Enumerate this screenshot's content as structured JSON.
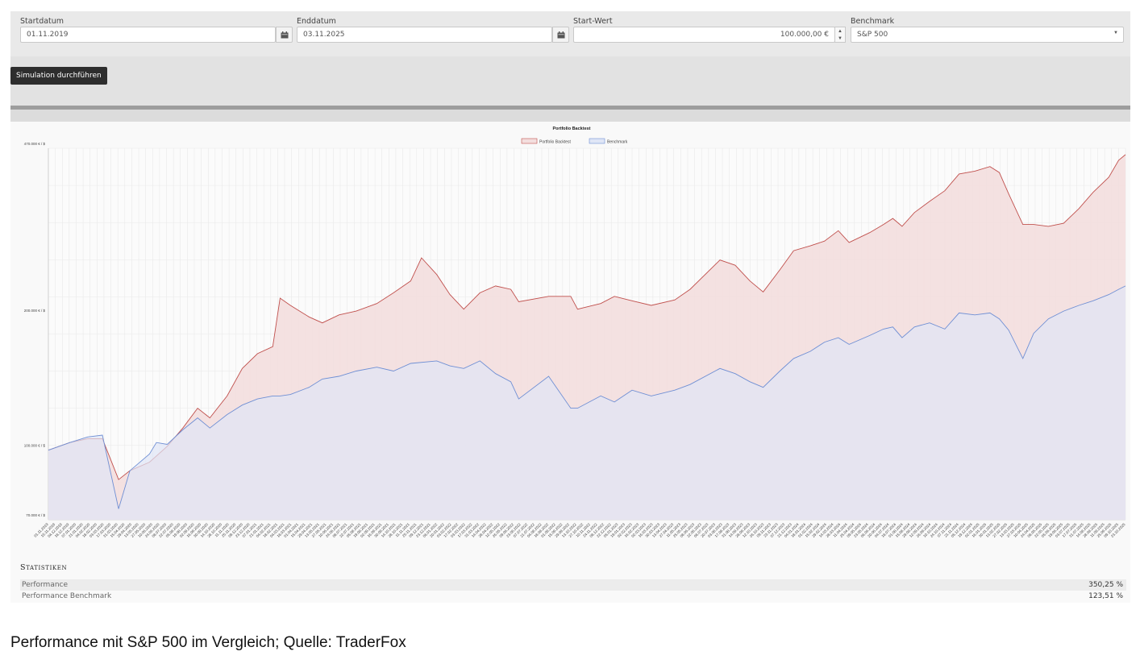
{
  "form": {
    "start_label": "Startdatum",
    "start_value": "01.11.2019",
    "end_label": "Enddatum",
    "end_value": "03.11.2025",
    "startwert_label": "Start-Wert",
    "startwert_value": "100.000,00 €",
    "benchmark_label": "Benchmark",
    "benchmark_value": "S&P 500"
  },
  "actions": {
    "run_label": "Simulation durchführen"
  },
  "chart_data": {
    "type": "area",
    "title": "Portfolio Backtest",
    "legend_position": "top-center",
    "y_scale": "log",
    "ylim": [
      70000,
      470000
    ],
    "y_ticks": [
      "470.000 € / $",
      "200.000 € / $",
      "100.000 € / $",
      "70.000 € / $"
    ],
    "y_tick_values": [
      470000,
      200000,
      100000,
      70000
    ],
    "grid": true,
    "x_start": "2019-11-01",
    "x_end": "2025-11-03",
    "x_ticks": [
      "01.11.2019",
      "15.11.2019",
      "04.12.2019",
      "18.12.2019",
      "07.01.2020",
      "21.01.2020",
      "04.02.2020",
      "18.02.2020",
      "03.03.2020",
      "17.03.2020",
      "31.03.2020",
      "15.04.2020",
      "29.04.2020",
      "13.05.2020",
      "27.05.2020",
      "10.06.2020",
      "24.06.2020",
      "08.07.2020",
      "22.07.2020",
      "05.08.2020",
      "19.08.2020",
      "02.09.2020",
      "16.09.2020",
      "30.09.2020",
      "14.10.2020",
      "28.10.2020",
      "11.11.2020",
      "25.11.2020",
      "09.12.2020",
      "23.12.2020",
      "07.01.2021",
      "21.01.2021",
      "04.02.2021",
      "18.02.2021",
      "04.03.2021",
      "18.03.2021",
      "01.04.2021",
      "15.04.2021",
      "29.04.2021",
      "13.05.2021",
      "27.05.2021",
      "10.06.2021",
      "24.06.2021",
      "08.07.2021",
      "22.07.2021",
      "05.08.2021",
      "19.08.2021",
      "02.09.2021",
      "16.09.2021",
      "30.09.2021",
      "14.10.2021",
      "28.10.2021",
      "11.11.2021",
      "25.11.2021",
      "09.12.2021",
      "23.12.2021",
      "06.01.2022",
      "20.01.2022",
      "03.02.2022",
      "17.02.2022",
      "03.03.2022",
      "17.03.2022",
      "31.03.2022",
      "14.04.2022",
      "28.04.2022",
      "12.05.2022",
      "26.05.2022",
      "09.06.2022",
      "23.06.2022",
      "07.07.2022",
      "21.07.2022",
      "04.08.2022",
      "18.08.2022",
      "01.09.2022",
      "15.09.2022",
      "29.09.2022",
      "13.10.2022",
      "27.10.2022",
      "10.11.2022",
      "24.11.2022",
      "08.12.2022",
      "22.12.2022",
      "05.01.2023",
      "19.01.2023",
      "02.02.2023",
      "16.02.2023",
      "02.03.2023",
      "16.03.2023",
      "30.03.2023",
      "13.04.2023",
      "27.04.2023",
      "11.05.2023",
      "25.05.2023",
      "08.06.2023",
      "22.06.2023",
      "06.07.2023",
      "20.07.2023",
      "03.08.2023",
      "17.08.2023",
      "31.08.2023",
      "14.09.2023",
      "28.09.2023",
      "12.10.2023",
      "26.10.2023",
      "09.11.2023",
      "23.11.2023",
      "07.12.2023",
      "21.12.2023",
      "04.01.2024",
      "18.01.2024",
      "01.02.2024",
      "15.02.2024",
      "29.02.2024",
      "14.03.2024",
      "28.03.2024",
      "11.04.2024",
      "25.04.2024",
      "09.05.2024",
      "23.05.2024",
      "06.06.2024",
      "20.06.2024",
      "04.07.2024",
      "18.07.2024",
      "01.08.2024",
      "15.08.2024",
      "29.08.2024",
      "12.09.2024",
      "26.09.2024",
      "10.10.2024",
      "24.10.2024",
      "07.11.2024",
      "21.11.2024",
      "05.12.2024",
      "19.12.2024",
      "02.01.2025",
      "16.01.2025",
      "30.01.2025",
      "13.02.2025",
      "27.02.2025",
      "13.03.2025",
      "27.03.2025",
      "10.04.2025",
      "24.04.2025",
      "08.05.2025",
      "22.05.2025",
      "05.06.2025",
      "19.06.2025",
      "03.07.2025",
      "17.07.2025",
      "31.07.2025",
      "14.08.2025",
      "28.08.2025",
      "11.09.2025",
      "25.09.2025",
      "09.10.2025",
      "23.10.2025"
    ],
    "series": [
      {
        "name": "Portfolio Backtest",
        "color": "#c0504d",
        "fill": "#f3dede",
        "x": [
          "2019-11-01",
          "2019-12-15",
          "2020-01-20",
          "2020-02-19",
          "2020-03-23",
          "2020-04-15",
          "2020-05-25",
          "2020-06-30",
          "2020-08-01",
          "2020-08-31",
          "2020-09-25",
          "2020-10-30",
          "2020-11-30",
          "2020-12-31",
          "2021-01-31",
          "2021-02-15",
          "2021-03-08",
          "2021-04-15",
          "2021-05-12",
          "2021-06-15",
          "2021-07-20",
          "2021-08-31",
          "2021-10-04",
          "2021-11-08",
          "2021-11-30",
          "2021-12-31",
          "2022-01-27",
          "2022-02-24",
          "2022-03-29",
          "2022-04-30",
          "2022-05-31",
          "2022-06-16",
          "2022-08-16",
          "2022-09-30",
          "2022-10-14",
          "2022-11-30",
          "2022-12-28",
          "2023-02-02",
          "2023-03-13",
          "2023-04-30",
          "2023-05-31",
          "2023-07-31",
          "2023-08-31",
          "2023-09-30",
          "2023-10-27",
          "2023-11-30",
          "2023-12-28",
          "2024-01-31",
          "2024-02-29",
          "2024-03-28",
          "2024-04-19",
          "2024-05-31",
          "2024-06-28",
          "2024-07-17",
          "2024-08-05",
          "2024-08-30",
          "2024-09-30",
          "2024-10-31",
          "2024-11-29",
          "2024-12-31",
          "2025-01-31",
          "2025-02-19",
          "2025-03-10",
          "2025-04-08",
          "2025-04-30",
          "2025-05-30",
          "2025-06-30",
          "2025-07-31",
          "2025-08-29",
          "2025-09-30",
          "2025-10-20",
          "2025-11-03"
        ],
        "values": [
          100000,
          104000,
          106000,
          106000,
          86000,
          90000,
          94000,
          102000,
          112000,
          124000,
          118000,
          132000,
          152000,
          164000,
          170000,
          218000,
          210000,
          198000,
          192000,
          200000,
          204000,
          212000,
          224000,
          238000,
          268000,
          246000,
          222000,
          206000,
          224000,
          232000,
          228000,
          214000,
          220000,
          220000,
          206000,
          212000,
          220000,
          215000,
          210000,
          216000,
          228000,
          265000,
          258000,
          238000,
          225000,
          252000,
          278000,
          285000,
          292000,
          308000,
          290000,
          305000,
          318000,
          328000,
          315000,
          338000,
          358000,
          378000,
          412000,
          418000,
          428000,
          415000,
          372000,
          318000,
          318000,
          315000,
          320000,
          345000,
          375000,
          405000,
          442000,
          455000
        ]
      },
      {
        "name": "Benchmark",
        "color": "#6f8fd4",
        "fill": "#dfe6f6",
        "x": [
          "2019-11-01",
          "2019-12-15",
          "2020-01-20",
          "2020-02-19",
          "2020-03-23",
          "2020-04-15",
          "2020-05-25",
          "2020-06-08",
          "2020-06-30",
          "2020-08-01",
          "2020-08-31",
          "2020-09-25",
          "2020-10-30",
          "2020-11-30",
          "2020-12-31",
          "2021-01-31",
          "2021-02-15",
          "2021-03-08",
          "2021-04-15",
          "2021-05-12",
          "2021-06-15",
          "2021-07-20",
          "2021-08-31",
          "2021-10-04",
          "2021-11-08",
          "2021-12-31",
          "2022-01-27",
          "2022-02-24",
          "2022-03-29",
          "2022-04-30",
          "2022-05-31",
          "2022-06-16",
          "2022-08-16",
          "2022-09-30",
          "2022-10-14",
          "2022-11-30",
          "2022-12-28",
          "2023-02-02",
          "2023-03-13",
          "2023-04-30",
          "2023-05-31",
          "2023-07-31",
          "2023-08-31",
          "2023-09-30",
          "2023-10-27",
          "2023-11-30",
          "2023-12-28",
          "2024-01-31",
          "2024-02-29",
          "2024-03-28",
          "2024-04-19",
          "2024-05-31",
          "2024-06-28",
          "2024-07-17",
          "2024-08-05",
          "2024-08-30",
          "2024-09-30",
          "2024-10-31",
          "2024-11-29",
          "2024-12-31",
          "2025-01-31",
          "2025-02-19",
          "2025-03-10",
          "2025-04-08",
          "2025-04-30",
          "2025-05-30",
          "2025-06-30",
          "2025-07-31",
          "2025-08-29",
          "2025-09-30",
          "2025-10-20",
          "2025-11-03"
        ],
        "values": [
          100000,
          104000,
          107000,
          108000,
          74000,
          90000,
          98000,
          104000,
          103000,
          111000,
          118000,
          112000,
          120000,
          126000,
          130000,
          132000,
          132000,
          133000,
          138000,
          144000,
          146000,
          150000,
          153000,
          150000,
          156000,
          158000,
          154000,
          152000,
          158000,
          148000,
          142000,
          130000,
          146000,
          124000,
          124000,
          132000,
          128000,
          136000,
          132000,
          136000,
          140000,
          152000,
          148000,
          142000,
          138000,
          150000,
          160000,
          166000,
          174000,
          178000,
          172000,
          180000,
          186000,
          188000,
          178000,
          188000,
          192000,
          186000,
          202000,
          200000,
          202000,
          196000,
          185000,
          160000,
          182000,
          196000,
          204000,
          210000,
          215000,
          222000,
          228000,
          232000
        ]
      }
    ]
  },
  "stats": {
    "title": "Statistiken",
    "rows": [
      {
        "label": "Performance",
        "value": "350,25 %"
      },
      {
        "label": "Performance Benchmark",
        "value": "123,51 %"
      }
    ]
  },
  "caption": "Performance mit S&P 500 im Vergleich; Quelle: TraderFox"
}
